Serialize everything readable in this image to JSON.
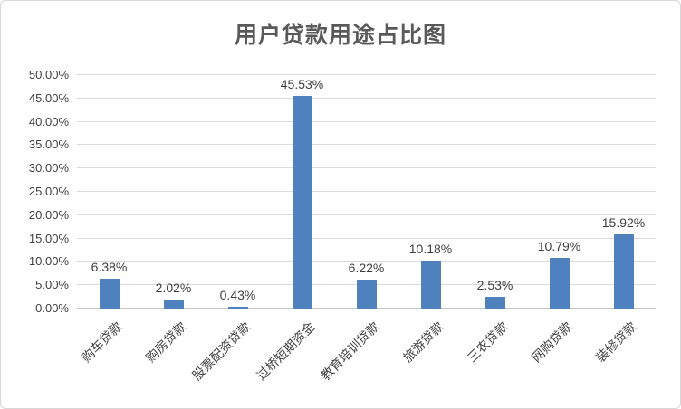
{
  "chart_data": {
    "type": "bar",
    "title": "用户贷款用途占比图",
    "categories": [
      "购车贷款",
      "购房贷款",
      "股票配资贷款",
      "过桥短期资金",
      "教育培训贷款",
      "旅游贷款",
      "三农贷款",
      "网购贷款",
      "装修贷款"
    ],
    "values": [
      6.38,
      2.02,
      0.43,
      45.53,
      6.22,
      10.18,
      2.53,
      10.79,
      15.92
    ],
    "value_labels": [
      "6.38%",
      "2.02%",
      "0.43%",
      "45.53%",
      "6.22%",
      "10.18%",
      "2.53%",
      "10.79%",
      "15.92%"
    ],
    "y_tick_labels": [
      "0.00%",
      "5.00%",
      "10.00%",
      "15.00%",
      "20.00%",
      "25.00%",
      "30.00%",
      "35.00%",
      "40.00%",
      "45.00%",
      "50.00%"
    ],
    "y_tick_step": 5,
    "ylim": [
      0,
      50
    ],
    "xlabel": "",
    "ylabel": "",
    "grid": true,
    "legend_position": "none",
    "colors": {
      "bar": "#4E81BD",
      "gridline": "#DBDBDB",
      "axis_line": "#C6C6C6",
      "title_text": "#595959",
      "tick_text": "#3F3F3F",
      "value_label_text": "#3F3F3F",
      "category_text": "#3F3F3F",
      "frame_border": "#D7D7D7",
      "background": "#FFFFFF"
    }
  }
}
